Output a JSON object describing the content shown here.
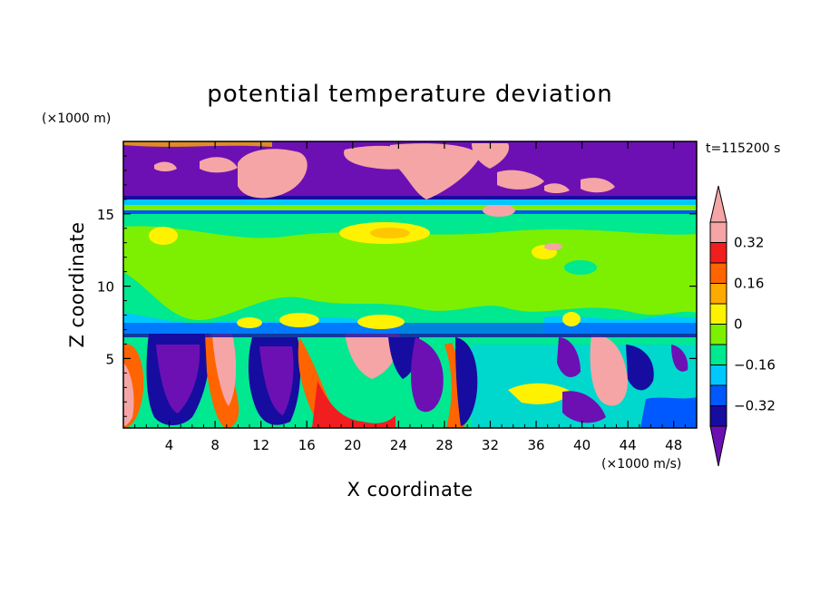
{
  "chart_data": {
    "type": "heatmap",
    "title": "potential temperature deviation",
    "xlabel": "X coordinate",
    "ylabel": "Z coordinate",
    "x_unit": "(×1000 m/s)",
    "y_unit": "(×1000 m)",
    "time_label": "t=115200 s",
    "xlim": [
      0,
      50
    ],
    "ylim": [
      0.2,
      20
    ],
    "x_ticks": [
      4,
      8,
      12,
      16,
      20,
      24,
      28,
      32,
      36,
      40,
      44,
      48
    ],
    "y_ticks": [
      5,
      10,
      15
    ],
    "colorbar": {
      "levels": [
        -0.4,
        -0.32,
        -0.24,
        -0.16,
        -0.08,
        0,
        0.08,
        0.16,
        0.24,
        0.32,
        0.4
      ],
      "tick_labels": [
        "0.32",
        "0.16",
        "0",
        "−0.16",
        "−0.32"
      ],
      "tick_values": [
        0.32,
        0.16,
        0,
        -0.16,
        -0.32
      ],
      "extend": "both",
      "colors": [
        "#6c10b4",
        "#160ca0",
        "#0058ff",
        "#00c8ff",
        "#00e890",
        "#7cf000",
        "#fff200",
        "#ffaa00",
        "#ff6400",
        "#f01e1e",
        "#f5a5a5"
      ]
    },
    "regions": [
      {
        "name": "upper layer",
        "z_range": [
          16,
          19.8
        ],
        "dominant_value": -0.45,
        "note": "purple with pink patches"
      },
      {
        "name": "band near 16",
        "z_range": [
          15.2,
          16
        ],
        "dominant_value": -0.1
      },
      {
        "name": "mid layer",
        "z_range": [
          7,
          15.2
        ],
        "dominant_value": 0.04
      },
      {
        "name": "lower layer",
        "z_range": [
          0.2,
          6.6
        ],
        "dominant_value": -0.08,
        "note": "alternating plumes"
      }
    ]
  }
}
